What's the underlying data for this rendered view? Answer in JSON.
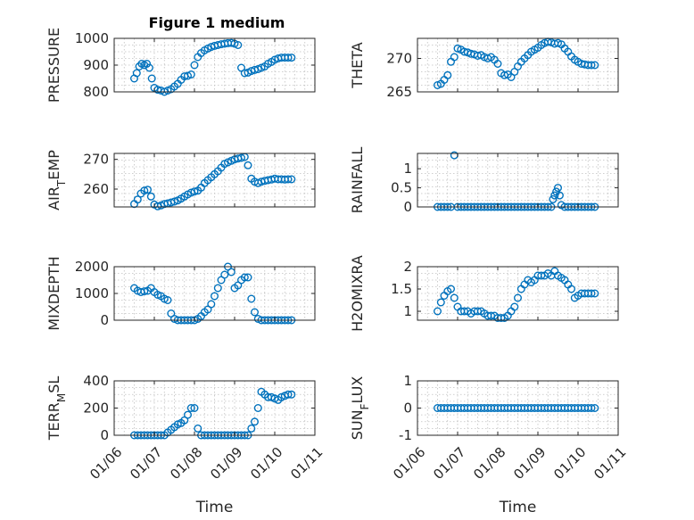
{
  "figure_title": "Figure 1 medium",
  "colors": {
    "marker": "#0072BD",
    "axis": "#262626",
    "grid": "#c0c0c0"
  },
  "chart_data": [
    {
      "type": "scatter",
      "name": "pressure",
      "ylabel": "PRESSURE",
      "ylabel_sub": "",
      "title": "Figure 1 medium",
      "xlabel": "",
      "xlim": [
        "2024-01-06",
        "2024-01-11"
      ],
      "ylim": [
        800,
        1000
      ],
      "yticks": [
        800,
        900,
        1000
      ],
      "grid": true,
      "marker": "circle-open",
      "x": [
        "2024-01-06 12:00",
        "2024-01-06 13:30",
        "2024-01-06 15:00",
        "2024-01-06 16:30",
        "2024-01-06 18:00",
        "2024-01-06 19:30",
        "2024-01-06 21:00",
        "2024-01-06 22:30",
        "2024-01-07 00:00",
        "2024-01-07 02:00",
        "2024-01-07 04:00",
        "2024-01-07 06:00",
        "2024-01-07 08:00",
        "2024-01-07 10:00",
        "2024-01-07 12:00",
        "2024-01-07 14:00",
        "2024-01-07 16:00",
        "2024-01-07 18:00",
        "2024-01-07 20:00",
        "2024-01-07 22:00",
        "2024-01-08 00:00",
        "2024-01-08 02:00",
        "2024-01-08 04:00",
        "2024-01-08 06:00",
        "2024-01-08 08:00",
        "2024-01-08 10:00",
        "2024-01-08 12:00",
        "2024-01-08 14:00",
        "2024-01-08 16:00",
        "2024-01-08 18:00",
        "2024-01-08 20:00",
        "2024-01-08 22:00",
        "2024-01-09 00:00",
        "2024-01-09 02:00",
        "2024-01-09 04:00",
        "2024-01-09 06:00",
        "2024-01-09 08:00",
        "2024-01-09 10:00",
        "2024-01-09 12:00",
        "2024-01-09 14:00",
        "2024-01-09 16:00",
        "2024-01-09 18:00",
        "2024-01-09 20:00",
        "2024-01-09 22:00",
        "2024-01-10 00:00",
        "2024-01-10 02:00",
        "2024-01-10 04:00",
        "2024-01-10 06:00",
        "2024-01-10 08:00",
        "2024-01-10 10:00"
      ],
      "y": [
        850,
        870,
        895,
        905,
        900,
        905,
        890,
        850,
        815,
        808,
        805,
        800,
        805,
        810,
        820,
        830,
        845,
        858,
        860,
        865,
        900,
        930,
        945,
        955,
        962,
        968,
        972,
        975,
        978,
        980,
        982,
        983,
        980,
        975,
        890,
        870,
        872,
        878,
        882,
        885,
        890,
        895,
        905,
        912,
        920,
        925,
        928,
        928,
        928,
        928
      ]
    },
    {
      "type": "scatter",
      "name": "theta",
      "ylabel": "THETA",
      "ylabel_sub": "",
      "xlim": [
        "2024-01-06",
        "2024-01-11"
      ],
      "ylim": [
        265,
        273
      ],
      "yticks": [
        265,
        270
      ],
      "grid": true,
      "marker": "circle-open",
      "x": [
        "2024-01-06 12:00",
        "2024-01-06 14:00",
        "2024-01-06 16:00",
        "2024-01-06 18:00",
        "2024-01-06 20:00",
        "2024-01-06 22:00",
        "2024-01-07 00:00",
        "2024-01-07 02:00",
        "2024-01-07 04:00",
        "2024-01-07 06:00",
        "2024-01-07 08:00",
        "2024-01-07 10:00",
        "2024-01-07 12:00",
        "2024-01-07 14:00",
        "2024-01-07 16:00",
        "2024-01-07 18:00",
        "2024-01-07 20:00",
        "2024-01-07 22:00",
        "2024-01-08 00:00",
        "2024-01-08 02:00",
        "2024-01-08 04:00",
        "2024-01-08 06:00",
        "2024-01-08 08:00",
        "2024-01-08 10:00",
        "2024-01-08 12:00",
        "2024-01-08 14:00",
        "2024-01-08 16:00",
        "2024-01-08 18:00",
        "2024-01-08 20:00",
        "2024-01-08 22:00",
        "2024-01-09 00:00",
        "2024-01-09 02:00",
        "2024-01-09 04:00",
        "2024-01-09 06:00",
        "2024-01-09 08:00",
        "2024-01-09 10:00",
        "2024-01-09 12:00",
        "2024-01-09 14:00",
        "2024-01-09 16:00",
        "2024-01-09 18:00",
        "2024-01-09 20:00",
        "2024-01-09 22:00",
        "2024-01-10 00:00",
        "2024-01-10 02:00",
        "2024-01-10 04:00",
        "2024-01-10 06:00",
        "2024-01-10 08:00",
        "2024-01-10 10:00"
      ],
      "y": [
        266.0,
        266.2,
        266.8,
        267.5,
        269.5,
        270.2,
        271.5,
        271.3,
        271.0,
        270.9,
        270.7,
        270.6,
        270.4,
        270.5,
        270.2,
        270.0,
        270.2,
        269.8,
        269.2,
        267.8,
        267.5,
        267.6,
        267.2,
        268.0,
        268.8,
        269.5,
        270.0,
        270.5,
        271.0,
        271.3,
        271.6,
        272.0,
        272.3,
        272.5,
        272.4,
        272.2,
        272.3,
        272.1,
        271.5,
        271.0,
        270.3,
        269.8,
        269.5,
        269.2,
        269.1,
        269.0,
        269.0,
        269.0
      ]
    },
    {
      "type": "scatter",
      "name": "air_temp",
      "ylabel": "AIR",
      "ylabel_sub": "T",
      "ylabel_tail": "EMP",
      "xlim": [
        "2024-01-06",
        "2024-01-11"
      ],
      "ylim": [
        254,
        272
      ],
      "yticks": [
        260,
        270
      ],
      "grid": true,
      "marker": "circle-open",
      "x": [
        "2024-01-06 12:00",
        "2024-01-06 14:00",
        "2024-01-06 16:00",
        "2024-01-06 18:00",
        "2024-01-06 20:00",
        "2024-01-06 22:00",
        "2024-01-07 00:00",
        "2024-01-07 02:00",
        "2024-01-07 04:00",
        "2024-01-07 06:00",
        "2024-01-07 08:00",
        "2024-01-07 10:00",
        "2024-01-07 12:00",
        "2024-01-07 14:00",
        "2024-01-07 16:00",
        "2024-01-07 18:00",
        "2024-01-07 20:00",
        "2024-01-07 22:00",
        "2024-01-08 00:00",
        "2024-01-08 02:00",
        "2024-01-08 04:00",
        "2024-01-08 06:00",
        "2024-01-08 08:00",
        "2024-01-08 10:00",
        "2024-01-08 12:00",
        "2024-01-08 14:00",
        "2024-01-08 16:00",
        "2024-01-08 18:00",
        "2024-01-08 20:00",
        "2024-01-08 22:00",
        "2024-01-09 00:00",
        "2024-01-09 02:00",
        "2024-01-09 04:00",
        "2024-01-09 06:00",
        "2024-01-09 08:00",
        "2024-01-09 10:00",
        "2024-01-09 12:00",
        "2024-01-09 14:00",
        "2024-01-09 16:00",
        "2024-01-09 18:00",
        "2024-01-09 20:00",
        "2024-01-09 22:00",
        "2024-01-10 00:00",
        "2024-01-10 02:00",
        "2024-01-10 04:00",
        "2024-01-10 06:00",
        "2024-01-10 08:00",
        "2024-01-10 10:00"
      ],
      "y": [
        255.0,
        256.5,
        258.5,
        259.5,
        259.8,
        257.5,
        254.8,
        254.2,
        254.5,
        255.0,
        255.2,
        255.5,
        255.8,
        256.2,
        256.8,
        257.5,
        258.2,
        258.8,
        259.2,
        259.5,
        260.5,
        262.0,
        263.0,
        264.0,
        265.0,
        266.0,
        267.2,
        268.5,
        269.0,
        269.5,
        270.0,
        270.3,
        270.5,
        270.8,
        268.0,
        263.5,
        262.5,
        262.0,
        262.5,
        262.8,
        263.0,
        263.2,
        263.5,
        263.3,
        263.3,
        263.2,
        263.3,
        263.3
      ]
    },
    {
      "type": "scatter",
      "name": "rainfall",
      "ylabel": "RAINFALL",
      "ylabel_sub": "",
      "xlim": [
        "2024-01-06",
        "2024-01-11"
      ],
      "ylim": [
        0,
        1.4
      ],
      "yticks": [
        0,
        0.5,
        1
      ],
      "grid": true,
      "marker": "circle-open",
      "x": [
        "2024-01-06 12:00",
        "2024-01-06 14:00",
        "2024-01-06 16:00",
        "2024-01-06 18:00",
        "2024-01-06 20:00",
        "2024-01-06 22:00",
        "2024-01-07 00:00",
        "2024-01-07 02:00",
        "2024-01-07 04:00",
        "2024-01-07 06:00",
        "2024-01-07 08:00",
        "2024-01-07 10:00",
        "2024-01-07 12:00",
        "2024-01-07 14:00",
        "2024-01-07 16:00",
        "2024-01-07 18:00",
        "2024-01-07 20:00",
        "2024-01-07 22:00",
        "2024-01-08 00:00",
        "2024-01-08 02:00",
        "2024-01-08 04:00",
        "2024-01-08 06:00",
        "2024-01-08 08:00",
        "2024-01-08 10:00",
        "2024-01-08 12:00",
        "2024-01-08 14:00",
        "2024-01-08 16:00",
        "2024-01-08 18:00",
        "2024-01-08 20:00",
        "2024-01-08 22:00",
        "2024-01-09 00:00",
        "2024-01-09 02:00",
        "2024-01-09 04:00",
        "2024-01-09 06:00",
        "2024-01-09 08:00",
        "2024-01-09 09:00",
        "2024-01-09 10:00",
        "2024-01-09 11:00",
        "2024-01-09 12:00",
        "2024-01-09 13:00",
        "2024-01-09 14:00",
        "2024-01-09 16:00",
        "2024-01-09 18:00",
        "2024-01-09 20:00",
        "2024-01-09 22:00",
        "2024-01-10 00:00",
        "2024-01-10 02:00",
        "2024-01-10 04:00",
        "2024-01-10 06:00",
        "2024-01-10 08:00",
        "2024-01-10 10:00"
      ],
      "y": [
        0,
        0,
        0,
        0,
        0,
        1.35,
        0,
        0,
        0,
        0,
        0,
        0,
        0,
        0,
        0,
        0,
        0,
        0,
        0,
        0,
        0,
        0,
        0,
        0,
        0,
        0,
        0,
        0,
        0,
        0,
        0,
        0,
        0,
        0,
        0,
        0.2,
        0.3,
        0.4,
        0.5,
        0.3,
        0.05,
        0,
        0,
        0,
        0,
        0,
        0,
        0,
        0,
        0,
        0
      ]
    },
    {
      "type": "scatter",
      "name": "mixdepth",
      "ylabel": "MIXDEPTH",
      "ylabel_sub": "",
      "xlim": [
        "2024-01-06",
        "2024-01-11"
      ],
      "ylim": [
        0,
        2000
      ],
      "yticks": [
        0,
        1000,
        2000
      ],
      "grid": true,
      "marker": "circle-open",
      "x": [
        "2024-01-06 12:00",
        "2024-01-06 14:00",
        "2024-01-06 16:00",
        "2024-01-06 18:00",
        "2024-01-06 20:00",
        "2024-01-06 22:00",
        "2024-01-07 00:00",
        "2024-01-07 02:00",
        "2024-01-07 04:00",
        "2024-01-07 06:00",
        "2024-01-07 08:00",
        "2024-01-07 10:00",
        "2024-01-07 12:00",
        "2024-01-07 14:00",
        "2024-01-07 16:00",
        "2024-01-07 18:00",
        "2024-01-07 20:00",
        "2024-01-07 22:00",
        "2024-01-08 00:00",
        "2024-01-08 02:00",
        "2024-01-08 04:00",
        "2024-01-08 06:00",
        "2024-01-08 08:00",
        "2024-01-08 10:00",
        "2024-01-08 12:00",
        "2024-01-08 14:00",
        "2024-01-08 16:00",
        "2024-01-08 18:00",
        "2024-01-08 20:00",
        "2024-01-08 22:00",
        "2024-01-09 00:00",
        "2024-01-09 02:00",
        "2024-01-09 04:00",
        "2024-01-09 06:00",
        "2024-01-09 08:00",
        "2024-01-09 10:00",
        "2024-01-09 12:00",
        "2024-01-09 14:00",
        "2024-01-09 16:00",
        "2024-01-09 18:00",
        "2024-01-09 20:00",
        "2024-01-09 22:00",
        "2024-01-10 00:00",
        "2024-01-10 02:00",
        "2024-01-10 04:00",
        "2024-01-10 06:00",
        "2024-01-10 08:00",
        "2024-01-10 10:00"
      ],
      "y": [
        1200,
        1100,
        1050,
        1080,
        1100,
        1200,
        1050,
        950,
        900,
        800,
        750,
        250,
        50,
        0,
        0,
        0,
        0,
        0,
        0,
        50,
        150,
        300,
        400,
        600,
        900,
        1200,
        1500,
        1700,
        2000,
        1800,
        1200,
        1300,
        1500,
        1600,
        1600,
        800,
        300,
        50,
        0,
        0,
        0,
        0,
        0,
        0,
        0,
        0,
        0,
        0
      ]
    },
    {
      "type": "scatter",
      "name": "h2omixra",
      "ylabel": "H2OMIXRA",
      "ylabel_sub": "",
      "xlim": [
        "2024-01-06",
        "2024-01-11"
      ],
      "ylim": [
        0.8,
        2.0
      ],
      "yticks": [
        1,
        1.5,
        2
      ],
      "grid": true,
      "marker": "circle-open",
      "x": [
        "2024-01-06 12:00",
        "2024-01-06 14:00",
        "2024-01-06 16:00",
        "2024-01-06 18:00",
        "2024-01-06 20:00",
        "2024-01-06 22:00",
        "2024-01-07 00:00",
        "2024-01-07 02:00",
        "2024-01-07 04:00",
        "2024-01-07 06:00",
        "2024-01-07 08:00",
        "2024-01-07 10:00",
        "2024-01-07 12:00",
        "2024-01-07 14:00",
        "2024-01-07 16:00",
        "2024-01-07 18:00",
        "2024-01-07 20:00",
        "2024-01-07 22:00",
        "2024-01-08 00:00",
        "2024-01-08 02:00",
        "2024-01-08 04:00",
        "2024-01-08 06:00",
        "2024-01-08 08:00",
        "2024-01-08 10:00",
        "2024-01-08 12:00",
        "2024-01-08 14:00",
        "2024-01-08 16:00",
        "2024-01-08 18:00",
        "2024-01-08 20:00",
        "2024-01-08 22:00",
        "2024-01-09 00:00",
        "2024-01-09 02:00",
        "2024-01-09 04:00",
        "2024-01-09 06:00",
        "2024-01-09 08:00",
        "2024-01-09 10:00",
        "2024-01-09 12:00",
        "2024-01-09 14:00",
        "2024-01-09 16:00",
        "2024-01-09 18:00",
        "2024-01-09 20:00",
        "2024-01-09 22:00",
        "2024-01-10 00:00",
        "2024-01-10 02:00",
        "2024-01-10 04:00",
        "2024-01-10 06:00",
        "2024-01-10 08:00",
        "2024-01-10 10:00"
      ],
      "y": [
        1.0,
        1.2,
        1.35,
        1.45,
        1.5,
        1.3,
        1.1,
        1.0,
        1.0,
        1.0,
        0.95,
        1.0,
        1.0,
        1.0,
        0.95,
        0.9,
        0.9,
        0.9,
        0.85,
        0.85,
        0.85,
        0.9,
        1.0,
        1.1,
        1.3,
        1.5,
        1.6,
        1.7,
        1.65,
        1.7,
        1.8,
        1.8,
        1.8,
        1.85,
        1.8,
        1.9,
        1.8,
        1.75,
        1.7,
        1.6,
        1.5,
        1.3,
        1.35,
        1.4,
        1.4,
        1.4,
        1.4,
        1.4
      ]
    },
    {
      "type": "scatter",
      "name": "terr_msl",
      "ylabel": "TERR",
      "ylabel_sub": "M",
      "ylabel_tail": "SL",
      "xlim": [
        "2024-01-06",
        "2024-01-11"
      ],
      "ylim": [
        0,
        400
      ],
      "yticks": [
        0,
        200,
        400
      ],
      "grid": true,
      "marker": "circle-open",
      "xticks": [
        "01/06",
        "01/07",
        "01/08",
        "01/09",
        "01/10",
        "01/11"
      ],
      "xlabel": "Time",
      "x": [
        "2024-01-06 12:00",
        "2024-01-06 14:00",
        "2024-01-06 16:00",
        "2024-01-06 18:00",
        "2024-01-06 20:00",
        "2024-01-06 22:00",
        "2024-01-07 00:00",
        "2024-01-07 02:00",
        "2024-01-07 04:00",
        "2024-01-07 06:00",
        "2024-01-07 08:00",
        "2024-01-07 10:00",
        "2024-01-07 12:00",
        "2024-01-07 14:00",
        "2024-01-07 16:00",
        "2024-01-07 18:00",
        "2024-01-07 20:00",
        "2024-01-07 22:00",
        "2024-01-08 00:00",
        "2024-01-08 02:00",
        "2024-01-08 04:00",
        "2024-01-08 06:00",
        "2024-01-08 08:00",
        "2024-01-08 10:00",
        "2024-01-08 12:00",
        "2024-01-08 14:00",
        "2024-01-08 16:00",
        "2024-01-08 18:00",
        "2024-01-08 20:00",
        "2024-01-08 22:00",
        "2024-01-09 00:00",
        "2024-01-09 02:00",
        "2024-01-09 04:00",
        "2024-01-09 06:00",
        "2024-01-09 08:00",
        "2024-01-09 10:00",
        "2024-01-09 12:00",
        "2024-01-09 14:00",
        "2024-01-09 16:00",
        "2024-01-09 18:00",
        "2024-01-09 20:00",
        "2024-01-09 22:00",
        "2024-01-10 00:00",
        "2024-01-10 02:00",
        "2024-01-10 04:00",
        "2024-01-10 06:00",
        "2024-01-10 08:00",
        "2024-01-10 10:00"
      ],
      "y": [
        0,
        0,
        0,
        0,
        0,
        0,
        0,
        0,
        0,
        0,
        20,
        40,
        60,
        80,
        90,
        110,
        150,
        200,
        200,
        50,
        0,
        0,
        0,
        0,
        0,
        0,
        0,
        0,
        0,
        0,
        0,
        0,
        0,
        0,
        0,
        50,
        100,
        200,
        320,
        300,
        280,
        280,
        270,
        260,
        280,
        290,
        300,
        300
      ]
    },
    {
      "type": "scatter",
      "name": "sun_flux",
      "ylabel": "SUN",
      "ylabel_sub": "F",
      "ylabel_tail": "LUX",
      "xlim": [
        "2024-01-06",
        "2024-01-11"
      ],
      "ylim": [
        -1,
        1
      ],
      "yticks": [
        -1,
        0,
        1
      ],
      "grid": true,
      "marker": "circle-open",
      "xticks": [
        "01/06",
        "01/07",
        "01/08",
        "01/09",
        "01/10",
        "01/11"
      ],
      "xlabel": "Time",
      "x": [
        "2024-01-06 12:00",
        "2024-01-06 14:00",
        "2024-01-06 16:00",
        "2024-01-06 18:00",
        "2024-01-06 20:00",
        "2024-01-06 22:00",
        "2024-01-07 00:00",
        "2024-01-07 02:00",
        "2024-01-07 04:00",
        "2024-01-07 06:00",
        "2024-01-07 08:00",
        "2024-01-07 10:00",
        "2024-01-07 12:00",
        "2024-01-07 14:00",
        "2024-01-07 16:00",
        "2024-01-07 18:00",
        "2024-01-07 20:00",
        "2024-01-07 22:00",
        "2024-01-08 00:00",
        "2024-01-08 02:00",
        "2024-01-08 04:00",
        "2024-01-08 06:00",
        "2024-01-08 08:00",
        "2024-01-08 10:00",
        "2024-01-08 12:00",
        "2024-01-08 14:00",
        "2024-01-08 16:00",
        "2024-01-08 18:00",
        "2024-01-08 20:00",
        "2024-01-08 22:00",
        "2024-01-09 00:00",
        "2024-01-09 02:00",
        "2024-01-09 04:00",
        "2024-01-09 06:00",
        "2024-01-09 08:00",
        "2024-01-09 10:00",
        "2024-01-09 12:00",
        "2024-01-09 14:00",
        "2024-01-09 16:00",
        "2024-01-09 18:00",
        "2024-01-09 20:00",
        "2024-01-09 22:00",
        "2024-01-10 00:00",
        "2024-01-10 02:00",
        "2024-01-10 04:00",
        "2024-01-10 06:00",
        "2024-01-10 08:00",
        "2024-01-10 10:00"
      ],
      "y": [
        0,
        0,
        0,
        0,
        0,
        0,
        0,
        0,
        0,
        0,
        0,
        0,
        0,
        0,
        0,
        0,
        0,
        0,
        0,
        0,
        0,
        0,
        0,
        0,
        0,
        0,
        0,
        0,
        0,
        0,
        0,
        0,
        0,
        0,
        0,
        0,
        0,
        0,
        0,
        0,
        0,
        0,
        0,
        0,
        0,
        0,
        0,
        0
      ]
    }
  ]
}
